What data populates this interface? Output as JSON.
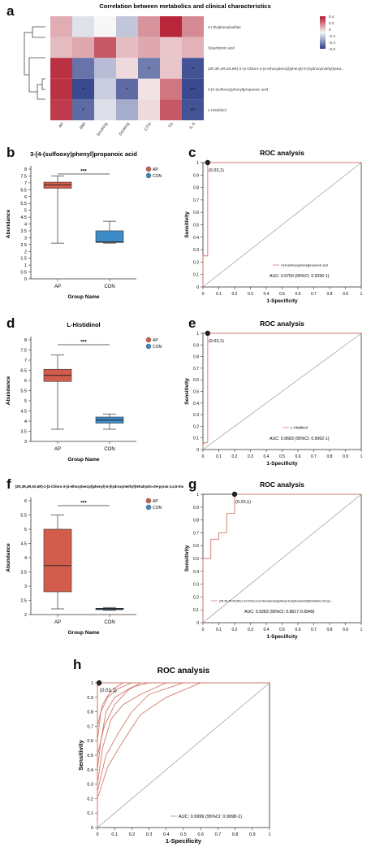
{
  "colors": {
    "ap_fill": "#d35d4c",
    "con_fill": "#3d8cc8",
    "roc_line": "#d27a6c",
    "diag_line": "#9a9a9a",
    "heat_high": "#b2182b",
    "heat_low": "#2c3e89"
  },
  "panel_a": {
    "label": "a",
    "chart_data": {
      "type": "heatmap",
      "title": "Correlation between metabolics and clinical characteristics",
      "columns": [
        "AP",
        "BMI",
        "Smoking",
        "Drinking",
        "CTSI",
        "TG",
        "IL-6"
      ],
      "rows": [
        "4-t thylphenylsulfate",
        "Stearidonic acid",
        "(2R,3R,4R,5S,6R)-2-(4-Chloro-3-(4-ethoxybenzyl)phenyl)-6-(hydroxymethyl)tetra...",
        "3-[4-(sulfooxy)phenyl]propanoic acid",
        "L-Histidinol"
      ],
      "values": [
        [
          0.15,
          -0.05,
          0.0,
          -0.12,
          0.2,
          0.42,
          0.22
        ],
        [
          0.12,
          0.16,
          0.32,
          0.12,
          0.16,
          0.1,
          0.14
        ],
        [
          0.4,
          -0.32,
          -0.14,
          0.06,
          -0.3,
          0.1,
          -0.4
        ],
        [
          0.4,
          -0.42,
          -0.1,
          -0.34,
          0.04,
          0.26,
          -0.42
        ],
        [
          0.38,
          -0.34,
          -0.06,
          -0.18,
          0.06,
          0.32,
          -0.4
        ]
      ],
      "stars": [
        [
          "",
          "",
          "",
          "",
          "",
          "",
          ""
        ],
        [
          "",
          "",
          "",
          "",
          "",
          "",
          ""
        ],
        [
          "",
          "",
          "",
          "",
          "*",
          "",
          "*"
        ],
        [
          "",
          "*",
          "",
          "*",
          "",
          "",
          "**"
        ],
        [
          "",
          "*",
          "",
          "",
          "",
          "",
          "**"
        ]
      ],
      "legend_ticks": [
        "0.4",
        "0.2",
        "0",
        "-0.2",
        "-0.4",
        "-0.6"
      ]
    }
  },
  "panel_b": {
    "label": "b",
    "chart_data": {
      "type": "box",
      "title": "3-[4-(sulfooxy)phenyl]propanoic acid",
      "xlabel": "Group Name",
      "ylabel": "Abundance",
      "ylim": [
        0,
        8
      ],
      "yticks": [
        "0",
        "0.5",
        "1",
        "1.5",
        "2",
        "2.5",
        "3",
        "3.5",
        "4",
        "4.5",
        "5",
        "5.5",
        "6",
        "6.5",
        "7",
        "7.5",
        "8"
      ],
      "categories": [
        "AP",
        "CON"
      ],
      "boxes": [
        {
          "name": "AP",
          "min": 2.6,
          "q1": 6.6,
          "median": 6.85,
          "q3": 7.05,
          "max": 7.5
        },
        {
          "name": "CON",
          "min": 2.6,
          "q1": 2.65,
          "median": 2.7,
          "q3": 3.5,
          "max": 4.2
        }
      ],
      "significance": "***",
      "legend": [
        "AP",
        "CON"
      ]
    }
  },
  "panel_c": {
    "label": "c",
    "chart_data": {
      "type": "line",
      "title": "ROC analysis",
      "xlabel": "1-Specificity",
      "ylabel": "Sensitivity",
      "xlim": [
        0,
        1
      ],
      "ylim": [
        0,
        1
      ],
      "ticks": [
        "0",
        "0.1",
        "0.2",
        "0.3",
        "0.4",
        "0.5",
        "0.6",
        "0.7",
        "0.8",
        "0.9",
        "1"
      ],
      "curve": [
        [
          0,
          0
        ],
        [
          0,
          0.25
        ],
        [
          0.03,
          0.25
        ],
        [
          0.03,
          1
        ],
        [
          1,
          1
        ]
      ],
      "best_point": [
        0.03,
        1
      ],
      "best_label": "(0.03,1)",
      "legend": "3-[4-(sulfooxy)phenyl]propanoic acid",
      "auc": "AUC: 0.9750 (95%CI: 0.9256-1)"
    }
  },
  "panel_d": {
    "label": "d",
    "chart_data": {
      "type": "box",
      "title": "L-Histidinol",
      "xlabel": "Group Name",
      "ylabel": "Abundance",
      "ylim": [
        3,
        8
      ],
      "yticks": [
        "3",
        "3.5",
        "4",
        "4.5",
        "5",
        "5.5",
        "6",
        "6.5",
        "7",
        "7.5",
        "8"
      ],
      "categories": [
        "AP",
        "CON"
      ],
      "boxes": [
        {
          "name": "AP",
          "min": 3.6,
          "q1": 5.95,
          "median": 6.25,
          "q3": 6.55,
          "max": 7.25
        },
        {
          "name": "CON",
          "min": 3.6,
          "q1": 3.9,
          "median": 4.05,
          "q3": 4.2,
          "max": 4.35
        }
      ],
      "significance": "***",
      "legend": [
        "AP",
        "CON"
      ]
    }
  },
  "panel_e": {
    "label": "e",
    "chart_data": {
      "type": "line",
      "title": "ROC analysis",
      "xlabel": "1-Specificity",
      "ylabel": "Sensitivity",
      "xlim": [
        0,
        1
      ],
      "ylim": [
        0,
        1
      ],
      "ticks": [
        "0",
        "0.1",
        "0.2",
        "0.3",
        "0.4",
        "0.5",
        "0.6",
        "0.7",
        "0.8",
        "0.9",
        "1"
      ],
      "curve": [
        [
          0,
          0
        ],
        [
          0,
          0.05
        ],
        [
          0.01,
          0.05
        ],
        [
          0.01,
          0.06
        ],
        [
          0.03,
          0.06
        ],
        [
          0.03,
          1
        ],
        [
          1,
          1
        ]
      ],
      "best_point": [
        0.03,
        1
      ],
      "best_label": "(0.03,1)",
      "legend": "L-Histidinol",
      "auc": "AUC: 0.9683 (95%CI: 0.9062-1)"
    }
  },
  "panel_f": {
    "label": "f",
    "chart_data": {
      "type": "box",
      "title": "(2R,3R,4R,5S,6R)-2-(4-Chloro-3-(4-ethoxybenzyl)phenyl)-6-(hydroxymethyl)tetrahydro-2H-pyran-3,4,5-triol",
      "xlabel": "Group Name",
      "ylabel": "Abundance",
      "ylim": [
        2,
        6
      ],
      "yticks": [
        "2",
        "2.5",
        "3",
        "3.5",
        "4",
        "4.5",
        "5",
        "5.5",
        "6"
      ],
      "categories": [
        "AP",
        "CON"
      ],
      "boxes": [
        {
          "name": "AP",
          "min": 2.2,
          "q1": 2.8,
          "median": 3.72,
          "q3": 5.0,
          "max": 5.5
        },
        {
          "name": "CON",
          "min": 2.15,
          "q1": 2.17,
          "median": 2.2,
          "q3": 2.22,
          "max": 2.25
        }
      ],
      "significance": "***",
      "legend": [
        "AP",
        "CON"
      ]
    }
  },
  "panel_g": {
    "label": "g",
    "chart_data": {
      "type": "line",
      "title": "ROC analysis",
      "xlabel": "1-Specificity",
      "ylabel": "Sensitivity",
      "xlim": [
        0,
        1
      ],
      "ylim": [
        0,
        1
      ],
      "ticks": [
        "0",
        "0.1",
        "0.2",
        "0.3",
        "0.4",
        "0.5",
        "0.6",
        "0.7",
        "0.8",
        "0.9",
        "1"
      ],
      "curve": [
        [
          0,
          0
        ],
        [
          0,
          0.5
        ],
        [
          0.05,
          0.5
        ],
        [
          0.05,
          0.65
        ],
        [
          0.1,
          0.65
        ],
        [
          0.1,
          0.7
        ],
        [
          0.15,
          0.7
        ],
        [
          0.15,
          0.85
        ],
        [
          0.2,
          0.85
        ],
        [
          0.2,
          1
        ],
        [
          1,
          1
        ]
      ],
      "best_point": [
        0.2,
        1
      ],
      "best_label": "(0.20,1)",
      "legend": "(2R,3R,4R,5S,6R)-2-(4-Chloro-3-(4-ethoxybenzyl)phenyl)-6-(hydroxymethyl)tetrahydro-2H-pyr...",
      "auc": "AUC: 0.9283 (95%CI: 0.8617-0.9949)"
    }
  },
  "panel_h": {
    "label": "h",
    "chart_data": {
      "type": "line",
      "title": "ROC analysis",
      "xlabel": "1-Specificity",
      "ylabel": "Sensitivity",
      "xlim": [
        0,
        1
      ],
      "ylim": [
        0,
        1
      ],
      "ticks": [
        "0",
        "0.1",
        "0.2",
        "0.3",
        "0.4",
        "0.5",
        "0.6",
        "0.7",
        "0.8",
        "0.9",
        "1"
      ],
      "curves": [
        [
          [
            0,
            0
          ],
          [
            0,
            0.98
          ],
          [
            0.01,
            0.98
          ],
          [
            0.01,
            1
          ],
          [
            1,
            1
          ]
        ],
        [
          [
            0,
            0
          ],
          [
            0,
            0.4
          ],
          [
            0.02,
            0.6
          ],
          [
            0.05,
            0.8
          ],
          [
            0.1,
            0.9
          ],
          [
            0.2,
            0.97
          ],
          [
            0.3,
            1
          ],
          [
            1,
            1
          ]
        ],
        [
          [
            0,
            0
          ],
          [
            0,
            0.3
          ],
          [
            0.03,
            0.55
          ],
          [
            0.08,
            0.75
          ],
          [
            0.15,
            0.85
          ],
          [
            0.25,
            0.92
          ],
          [
            0.4,
            1
          ],
          [
            1,
            1
          ]
        ],
        [
          [
            0,
            0
          ],
          [
            0,
            0.5
          ],
          [
            0.04,
            0.7
          ],
          [
            0.1,
            0.85
          ],
          [
            0.18,
            0.95
          ],
          [
            0.25,
            1
          ],
          [
            1,
            1
          ]
        ],
        [
          [
            0,
            0
          ],
          [
            0,
            0.25
          ],
          [
            0.05,
            0.5
          ],
          [
            0.12,
            0.65
          ],
          [
            0.2,
            0.8
          ],
          [
            0.3,
            0.92
          ],
          [
            0.5,
            1
          ],
          [
            1,
            1
          ]
        ],
        [
          [
            0,
            0
          ],
          [
            0,
            0.6
          ],
          [
            0.02,
            0.8
          ],
          [
            0.06,
            0.9
          ],
          [
            0.12,
            0.96
          ],
          [
            0.2,
            1
          ],
          [
            1,
            1
          ]
        ],
        [
          [
            0,
            0
          ],
          [
            0,
            0.2
          ],
          [
            0.06,
            0.42
          ],
          [
            0.15,
            0.6
          ],
          [
            0.25,
            0.78
          ],
          [
            0.4,
            0.9
          ],
          [
            0.6,
            1
          ],
          [
            1,
            1
          ]
        ],
        [
          [
            0,
            0
          ],
          [
            0,
            0.7
          ],
          [
            0.03,
            0.85
          ],
          [
            0.08,
            0.95
          ],
          [
            0.15,
            1
          ],
          [
            1,
            1
          ]
        ]
      ],
      "best_point": [
        0.01,
        1
      ],
      "best_label": "(0.01,1)",
      "auc": "AUC: 0.9999 (95%CI: 0.9998-1)"
    }
  }
}
